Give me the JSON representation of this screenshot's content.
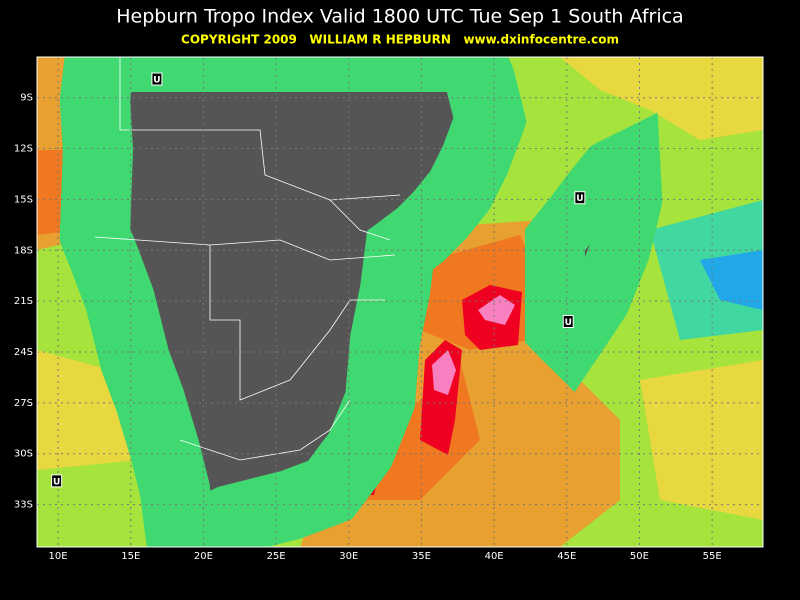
{
  "header": {
    "title": "Hepburn Tropo Index Valid 1800 UTC Tue Sep 1 South Africa",
    "copyright": "COPYRIGHT 2009   WILLIAM R HEPBURN   www.dxinfocentre.com"
  },
  "map": {
    "xlim": [
      8.55,
      58.5
    ],
    "ylim": [
      -6.6,
      -35.5
    ],
    "xticks": [
      {
        "value": 10,
        "label": "10E"
      },
      {
        "value": 15,
        "label": "15E"
      },
      {
        "value": 20,
        "label": "20E"
      },
      {
        "value": 25,
        "label": "25E"
      },
      {
        "value": 30,
        "label": "30E"
      },
      {
        "value": 35,
        "label": "35E"
      },
      {
        "value": 40,
        "label": "40E"
      },
      {
        "value": 45,
        "label": "45E"
      },
      {
        "value": 50,
        "label": "50E"
      },
      {
        "value": 55,
        "label": "55E"
      }
    ],
    "yticks": [
      {
        "value": -9,
        "label": "9S"
      },
      {
        "value": -12,
        "label": "12S"
      },
      {
        "value": -15,
        "label": "15S"
      },
      {
        "value": -18,
        "label": "18S"
      },
      {
        "value": -21,
        "label": "21S"
      },
      {
        "value": -24,
        "label": "24S"
      },
      {
        "value": -27,
        "label": "27S"
      },
      {
        "value": -30,
        "label": "30S"
      },
      {
        "value": -33,
        "label": "33S"
      }
    ],
    "markers": [
      {
        "label": "U",
        "lon": 16.8,
        "lat": -7.9
      },
      {
        "label": "U",
        "lon": 45.9,
        "lat": -14.9
      },
      {
        "label": "U",
        "lon": 45.1,
        "lat": -22.2
      },
      {
        "label": "U",
        "lon": 9.9,
        "lat": -31.6
      }
    ]
  }
}
